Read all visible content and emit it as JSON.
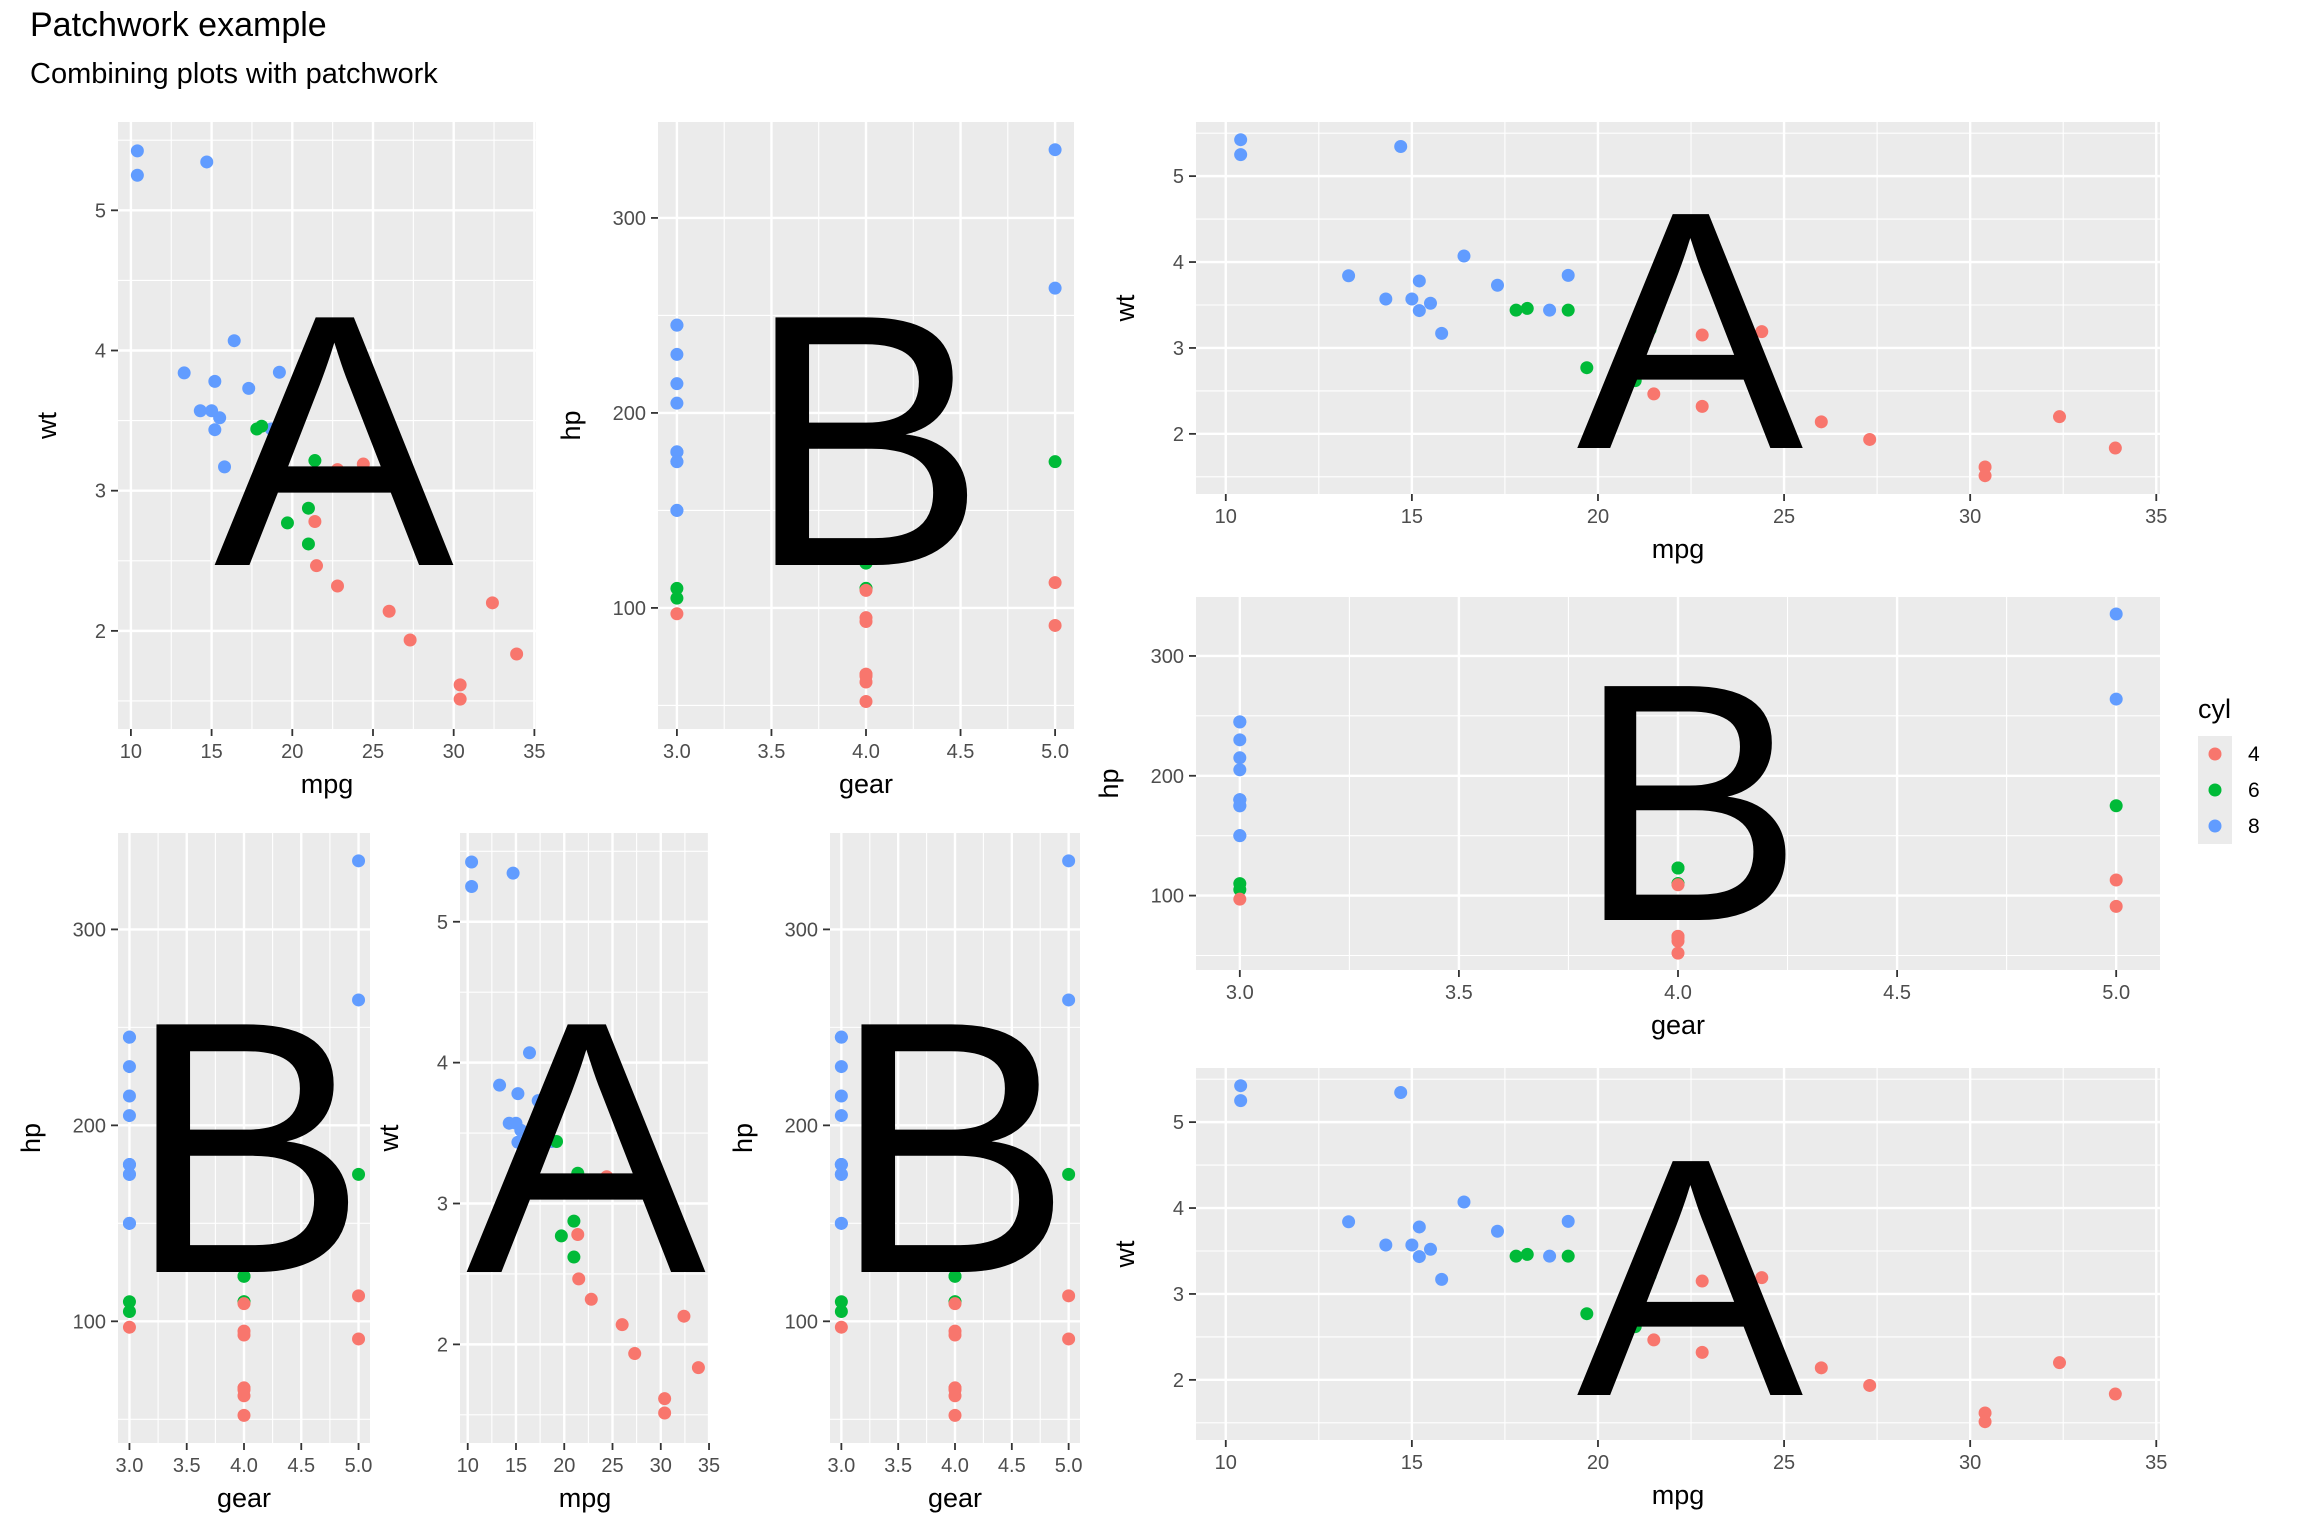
{
  "title": "Patchwork example",
  "subtitle": "Combining plots with patchwork",
  "legend": {
    "title": "cyl",
    "entries": [
      {
        "label": "4",
        "color": "#F8766D"
      },
      {
        "label": "6",
        "color": "#00BA38"
      },
      {
        "label": "8",
        "color": "#619CFF"
      }
    ]
  },
  "chart_data": {
    "type": "scatter",
    "dataset": [
      {
        "mpg": 21.0,
        "wt": 2.62,
        "hp": 110,
        "gear": 4,
        "cyl": "6"
      },
      {
        "mpg": 21.0,
        "wt": 2.875,
        "hp": 110,
        "gear": 4,
        "cyl": "6"
      },
      {
        "mpg": 22.8,
        "wt": 2.32,
        "hp": 93,
        "gear": 4,
        "cyl": "4"
      },
      {
        "mpg": 21.4,
        "wt": 3.215,
        "hp": 110,
        "gear": 3,
        "cyl": "6"
      },
      {
        "mpg": 18.7,
        "wt": 3.44,
        "hp": 175,
        "gear": 3,
        "cyl": "8"
      },
      {
        "mpg": 18.1,
        "wt": 3.46,
        "hp": 105,
        "gear": 3,
        "cyl": "6"
      },
      {
        "mpg": 14.3,
        "wt": 3.57,
        "hp": 245,
        "gear": 3,
        "cyl": "8"
      },
      {
        "mpg": 24.4,
        "wt": 3.19,
        "hp": 62,
        "gear": 4,
        "cyl": "4"
      },
      {
        "mpg": 22.8,
        "wt": 3.15,
        "hp": 95,
        "gear": 4,
        "cyl": "4"
      },
      {
        "mpg": 19.2,
        "wt": 3.44,
        "hp": 123,
        "gear": 4,
        "cyl": "6"
      },
      {
        "mpg": 17.8,
        "wt": 3.44,
        "hp": 123,
        "gear": 4,
        "cyl": "6"
      },
      {
        "mpg": 16.4,
        "wt": 4.07,
        "hp": 180,
        "gear": 3,
        "cyl": "8"
      },
      {
        "mpg": 17.3,
        "wt": 3.73,
        "hp": 180,
        "gear": 3,
        "cyl": "8"
      },
      {
        "mpg": 15.2,
        "wt": 3.78,
        "hp": 180,
        "gear": 3,
        "cyl": "8"
      },
      {
        "mpg": 10.4,
        "wt": 5.25,
        "hp": 205,
        "gear": 3,
        "cyl": "8"
      },
      {
        "mpg": 10.4,
        "wt": 5.424,
        "hp": 215,
        "gear": 3,
        "cyl": "8"
      },
      {
        "mpg": 14.7,
        "wt": 5.345,
        "hp": 230,
        "gear": 3,
        "cyl": "8"
      },
      {
        "mpg": 32.4,
        "wt": 2.2,
        "hp": 66,
        "gear": 4,
        "cyl": "4"
      },
      {
        "mpg": 30.4,
        "wt": 1.615,
        "hp": 52,
        "gear": 4,
        "cyl": "4"
      },
      {
        "mpg": 33.9,
        "wt": 1.835,
        "hp": 65,
        "gear": 4,
        "cyl": "4"
      },
      {
        "mpg": 21.5,
        "wt": 2.465,
        "hp": 97,
        "gear": 3,
        "cyl": "4"
      },
      {
        "mpg": 15.5,
        "wt": 3.52,
        "hp": 150,
        "gear": 3,
        "cyl": "8"
      },
      {
        "mpg": 15.2,
        "wt": 3.435,
        "hp": 150,
        "gear": 3,
        "cyl": "8"
      },
      {
        "mpg": 13.3,
        "wt": 3.84,
        "hp": 245,
        "gear": 3,
        "cyl": "8"
      },
      {
        "mpg": 19.2,
        "wt": 3.845,
        "hp": 175,
        "gear": 3,
        "cyl": "8"
      },
      {
        "mpg": 27.3,
        "wt": 1.935,
        "hp": 66,
        "gear": 4,
        "cyl": "4"
      },
      {
        "mpg": 26.0,
        "wt": 2.14,
        "hp": 91,
        "gear": 5,
        "cyl": "4"
      },
      {
        "mpg": 30.4,
        "wt": 1.513,
        "hp": 113,
        "gear": 5,
        "cyl": "4"
      },
      {
        "mpg": 15.8,
        "wt": 3.17,
        "hp": 264,
        "gear": 5,
        "cyl": "8"
      },
      {
        "mpg": 19.7,
        "wt": 2.77,
        "hp": 175,
        "gear": 5,
        "cyl": "6"
      },
      {
        "mpg": 15.0,
        "wt": 3.57,
        "hp": 335,
        "gear": 5,
        "cyl": "8"
      },
      {
        "mpg": 21.4,
        "wt": 2.78,
        "hp": 109,
        "gear": 4,
        "cyl": "4"
      }
    ],
    "panels": [
      {
        "id": "plot-1",
        "tag": "A",
        "x": "mpg",
        "y": "wt",
        "xlabel": "mpg",
        "ylabel": "wt",
        "xlim": [
          9.2,
          35.1
        ],
        "ylim": [
          1.3,
          5.63
        ],
        "xticks": [
          10,
          15,
          20,
          25,
          30,
          35
        ],
        "yticks": [
          2,
          3,
          4,
          5
        ]
      },
      {
        "id": "plot-2",
        "tag": "B",
        "x": "gear",
        "y": "hp",
        "xlabel": "gear",
        "ylabel": "hp",
        "xlim": [
          2.9,
          5.1
        ],
        "ylim": [
          37.9,
          349.2
        ],
        "xticks": [
          3.0,
          3.5,
          4.0,
          4.5,
          5.0
        ],
        "yticks": [
          100,
          200,
          300
        ]
      },
      {
        "id": "plot-3",
        "tag": "A",
        "x": "mpg",
        "y": "wt",
        "xlabel": "mpg",
        "ylabel": "wt",
        "xlim": [
          9.2,
          35.1
        ],
        "ylim": [
          1.3,
          5.63
        ],
        "xticks": [
          10,
          15,
          20,
          25,
          30,
          35
        ],
        "yticks": [
          2,
          3,
          4,
          5
        ]
      },
      {
        "id": "plot-4",
        "tag": "B",
        "x": "gear",
        "y": "hp",
        "xlabel": "gear",
        "ylabel": "hp",
        "xlim": [
          2.9,
          5.1
        ],
        "ylim": [
          37.9,
          349.2
        ],
        "xticks": [
          3.0,
          3.5,
          4.0,
          4.5,
          5.0
        ],
        "yticks": [
          100,
          200,
          300
        ]
      },
      {
        "id": "plot-5",
        "tag": "B",
        "x": "gear",
        "y": "hp",
        "xlabel": "gear",
        "ylabel": "hp",
        "xlim": [
          2.9,
          5.1
        ],
        "ylim": [
          37.9,
          349.2
        ],
        "xticks": [
          3.0,
          3.5,
          4.0,
          4.5,
          5.0
        ],
        "yticks": [
          100,
          200,
          300
        ]
      },
      {
        "id": "plot-6",
        "tag": "A",
        "x": "mpg",
        "y": "wt",
        "xlabel": "mpg",
        "ylabel": "wt",
        "xlim": [
          9.2,
          35.1
        ],
        "ylim": [
          1.3,
          5.63
        ],
        "xticks": [
          10,
          15,
          20,
          25,
          30,
          35
        ],
        "yticks": [
          2,
          3,
          4,
          5
        ]
      },
      {
        "id": "plot-7",
        "tag": "A",
        "x": "mpg",
        "y": "wt",
        "xlabel": "mpg",
        "ylabel": "wt",
        "xlim": [
          9.2,
          35.1
        ],
        "ylim": [
          1.3,
          5.63
        ],
        "xticks": [
          10,
          15,
          20,
          25,
          30,
          35
        ],
        "yticks": [
          2,
          3,
          4,
          5
        ]
      },
      {
        "id": "plot-8",
        "tag": "B",
        "x": "gear",
        "y": "hp",
        "xlabel": "gear",
        "ylabel": "hp",
        "xlim": [
          2.9,
          5.1
        ],
        "ylim": [
          37.9,
          349.2
        ],
        "xticks": [
          3.0,
          3.5,
          4.0,
          4.5,
          5.0
        ],
        "yticks": [
          100,
          200,
          300
        ]
      }
    ]
  }
}
